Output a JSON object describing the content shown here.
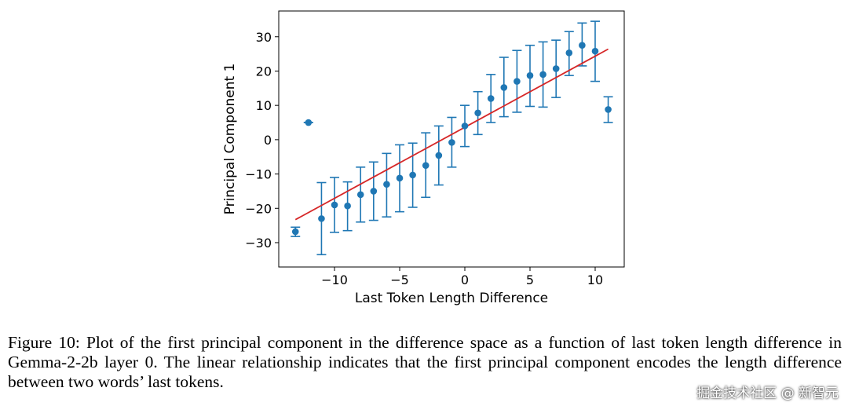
{
  "chart_data": {
    "type": "scatter",
    "xlabel": "Last Token Length Difference",
    "ylabel": "Principal Component 1",
    "xlim": [
      -14.28,
      12.23
    ],
    "ylim": [
      -37.1,
      37.5
    ],
    "xticks": [
      -10,
      -5,
      0,
      5,
      10
    ],
    "xtick_labels": [
      "−10",
      "−5",
      "0",
      "5",
      "10"
    ],
    "yticks": [
      -30,
      -20,
      -10,
      0,
      10,
      20,
      30
    ],
    "ytick_labels": [
      "−30",
      "−20",
      "−10",
      "0",
      "10",
      "20",
      "30"
    ],
    "grid": false,
    "points": {
      "x": [
        -13,
        -12,
        -11,
        -10,
        -9,
        -8,
        -7,
        -6,
        -5,
        -4,
        -3,
        -2,
        -1,
        0,
        1,
        2,
        3,
        4,
        5,
        6,
        7,
        8,
        9,
        10,
        11
      ],
      "y": [
        -26.8,
        5,
        -23,
        -19,
        -19.3,
        -16,
        -15,
        -13,
        -11.2,
        -10.3,
        -7.5,
        -4.6,
        -0.8,
        4,
        7.8,
        12,
        15.2,
        17,
        18.7,
        19,
        20.7,
        25.3,
        27.5,
        25.8,
        8.8
      ],
      "err_low": [
        -28.2,
        5,
        -33.5,
        -27,
        -26.5,
        -24,
        -23.5,
        -22.5,
        -21,
        -19.7,
        -16.8,
        -13.2,
        -8,
        -2,
        1.5,
        5,
        6.7,
        8,
        9.7,
        9.5,
        12.3,
        18.7,
        21.5,
        17,
        5
      ],
      "err_high": [
        -25.5,
        5,
        -12.5,
        -11,
        -12.3,
        -8,
        -6.5,
        -4,
        -1.5,
        -1,
        2,
        4,
        6.5,
        10,
        14,
        19,
        24,
        26,
        27.5,
        28.5,
        29,
        31.5,
        34,
        34.5,
        12.5
      ],
      "color": "#1f77b4"
    },
    "fit_line": {
      "x": [
        -13,
        11
      ],
      "y": [
        -23.3,
        26.4
      ],
      "color": "#d62728"
    }
  },
  "caption": "Figure 10: Plot of the first principal component in the difference space as a function of last token length difference in Gemma-2-2b layer 0. The linear relationship indicates that the first principal component encodes the length difference between two words’ last tokens.",
  "watermark": "掘金技术社区 @ 新智元"
}
